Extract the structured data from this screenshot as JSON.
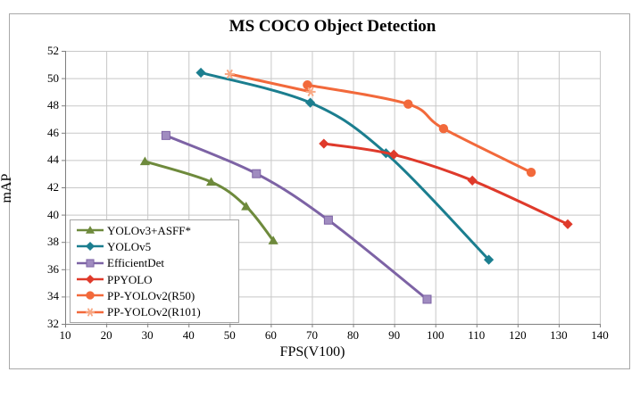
{
  "title": "MS COCO Object Detection",
  "chart_data": {
    "type": "line",
    "title": "MS COCO Object Detection",
    "xlabel": "FPS(V100)",
    "ylabel": "mAP",
    "xlim": [
      10,
      140
    ],
    "ylim": [
      32,
      52
    ],
    "x_ticks": [
      10,
      20,
      30,
      40,
      50,
      60,
      70,
      80,
      90,
      100,
      110,
      120,
      130,
      140
    ],
    "y_ticks": [
      32,
      34,
      36,
      38,
      40,
      42,
      44,
      46,
      48,
      50,
      52
    ],
    "grid": true,
    "legend_position": "inside-bottom-left",
    "series": [
      {
        "name": "YOLOv3+ASFF*",
        "color": "#6E8A3C",
        "marker": "triangle",
        "marker_fill": "#6E8A3C",
        "points": [
          [
            29.4,
            43.9
          ],
          [
            45.5,
            42.4
          ],
          [
            54,
            40.6
          ],
          [
            60.6,
            38.1
          ]
        ]
      },
      {
        "name": "YOLOv5",
        "color": "#1B7E8F",
        "marker": "diamond",
        "marker_fill": "#1B7E8F",
        "points": [
          [
            43,
            50.4
          ],
          [
            69.6,
            48.2
          ],
          [
            88,
            44.5
          ],
          [
            113,
            36.7
          ]
        ]
      },
      {
        "name": "EfficientDet",
        "color": "#7D63A5",
        "marker": "square",
        "marker_fill": "#A08CC0",
        "points": [
          [
            34.5,
            45.8
          ],
          [
            56.5,
            43.0
          ],
          [
            74,
            39.6
          ],
          [
            98,
            33.8
          ]
        ]
      },
      {
        "name": "PPYOLO",
        "color": "#DF3A2B",
        "marker": "diamond",
        "marker_fill": "#DF3A2B",
        "points": [
          [
            72.9,
            45.2
          ],
          [
            89.9,
            44.4
          ],
          [
            109,
            42.5
          ],
          [
            132.2,
            39.3
          ]
        ]
      },
      {
        "name": "PP-YOLOv2(R50)",
        "color": "#F2693B",
        "marker": "circle",
        "marker_fill": "#F2693B",
        "points": [
          [
            68.9,
            49.5
          ],
          [
            93.4,
            48.1
          ],
          [
            102,
            46.3
          ],
          [
            123.3,
            43.1
          ]
        ]
      },
      {
        "name": "PP-YOLOv2(R101)",
        "color": "#F2693B",
        "marker": "star",
        "marker_fill": "#F8A884",
        "points": [
          [
            50,
            50.3
          ],
          [
            69.7,
            49.0
          ]
        ]
      }
    ]
  },
  "colors": {
    "grid": "#c8c8c8",
    "axis": "#7f7f7f",
    "frame": "#a9a9a9",
    "text": "#000000",
    "background": "#ffffff"
  }
}
